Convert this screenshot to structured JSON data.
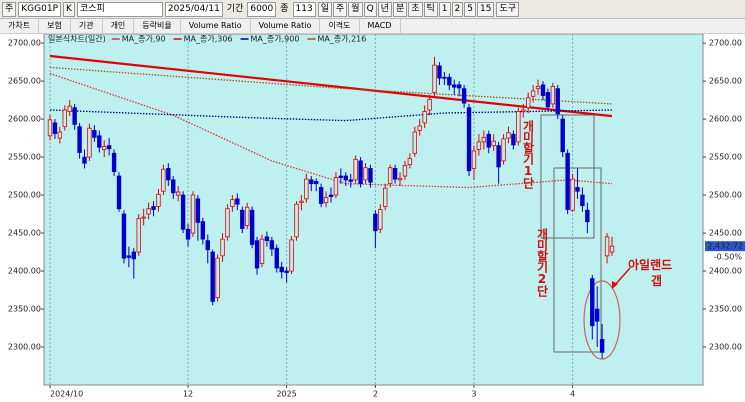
{
  "toolbar": {
    "market": "주",
    "code": "KGG01P",
    "k": "K",
    "name": "코스피",
    "date": "2025/04/11",
    "period_label": "기간",
    "period": "6000",
    "count_label": "종",
    "count": "113",
    "intervals": [
      "일",
      "주",
      "월",
      "Q",
      "년",
      "분",
      "초",
      "틱",
      "1",
      "2",
      "5",
      "15"
    ],
    "tools": "도구"
  },
  "tabs": [
    "가차트",
    "보험",
    "기관",
    "개인",
    "등락비율",
    "Volume Ratio",
    "Volume Ratio",
    "이격도",
    "MACD"
  ],
  "chart_data": {
    "type": "candlestick",
    "legend_title": "일본식차트(일간)",
    "up_color": "#e00000",
    "down_color": "#0000cc",
    "open": [
      2578,
      2595,
      2575,
      2590,
      2610,
      2615,
      2590,
      2550,
      2550,
      2585,
      2578,
      2560,
      2565,
      2555,
      2525,
      2475,
      2420,
      2425,
      2425,
      2470,
      2475,
      2485,
      2485,
      2505,
      2535,
      2520,
      2500,
      2500,
      2455,
      2450,
      2495,
      2465,
      2440,
      2425,
      2365,
      2420,
      2445,
      2485,
      2495,
      2480,
      2460,
      2480,
      2440,
      2410,
      2445,
      2440,
      2430,
      2405,
      2400,
      2400,
      2445,
      2490,
      2495,
      2520,
      2518,
      2510,
      2490,
      2500,
      2500,
      2525,
      2525,
      2520,
      2520,
      2545,
      2520,
      2535,
      2475,
      2455,
      2485,
      2515,
      2535,
      2520,
      2525,
      2540,
      2555,
      2585,
      2595,
      2612,
      2635,
      2670,
      2655,
      2655,
      2645,
      2645,
      2640,
      2615,
      2535,
      2560,
      2570,
      2580,
      2565,
      2565,
      2545,
      2575,
      2580,
      2570,
      2610,
      2615,
      2630,
      2640,
      2645,
      2635,
      2620,
      2640,
      2600,
      2555,
      2480,
      2510,
      2500,
      2480,
      2390,
      2350,
      2310,
      2420,
      2425
    ],
    "high": [
      2606,
      2600,
      2590,
      2618,
      2625,
      2620,
      2595,
      2560,
      2594,
      2592,
      2585,
      2572,
      2575,
      2560,
      2530,
      2480,
      2432,
      2430,
      2475,
      2482,
      2490,
      2492,
      2508,
      2540,
      2542,
      2525,
      2512,
      2505,
      2462,
      2505,
      2500,
      2470,
      2448,
      2428,
      2422,
      2450,
      2488,
      2500,
      2502,
      2485,
      2490,
      2485,
      2445,
      2448,
      2452,
      2445,
      2435,
      2412,
      2405,
      2446,
      2492,
      2500,
      2528,
      2525,
      2522,
      2515,
      2505,
      2510,
      2530,
      2535,
      2530,
      2528,
      2552,
      2550,
      2542,
      2540,
      2480,
      2488,
      2515,
      2540,
      2540,
      2530,
      2545,
      2555,
      2590,
      2600,
      2618,
      2632,
      2682,
      2675,
      2662,
      2660,
      2652,
      2650,
      2645,
      2620,
      2565,
      2580,
      2585,
      2585,
      2580,
      2570,
      2580,
      2590,
      2585,
      2615,
      2620,
      2635,
      2645,
      2652,
      2650,
      2640,
      2648,
      2645,
      2605,
      2560,
      2528,
      2535,
      2510,
      2490,
      2395,
      2380,
      2330,
      2450,
      2445
    ],
    "low": [
      2572,
      2574,
      2568,
      2585,
      2604,
      2586,
      2548,
      2535,
      2545,
      2570,
      2556,
      2550,
      2552,
      2525,
      2478,
      2410,
      2405,
      2390,
      2420,
      2460,
      2468,
      2472,
      2478,
      2500,
      2512,
      2495,
      2492,
      2450,
      2432,
      2445,
      2440,
      2435,
      2410,
      2355,
      2360,
      2412,
      2440,
      2478,
      2480,
      2450,
      2455,
      2430,
      2395,
      2405,
      2432,
      2420,
      2398,
      2390,
      2385,
      2396,
      2440,
      2480,
      2490,
      2505,
      2505,
      2484,
      2484,
      2490,
      2496,
      2515,
      2512,
      2510,
      2515,
      2510,
      2515,
      2510,
      2430,
      2450,
      2480,
      2510,
      2515,
      2512,
      2520,
      2535,
      2550,
      2578,
      2588,
      2605,
      2630,
      2645,
      2645,
      2638,
      2632,
      2630,
      2615,
      2525,
      2520,
      2552,
      2560,
      2555,
      2558,
      2515,
      2540,
      2568,
      2560,
      2565,
      2602,
      2608,
      2622,
      2632,
      2625,
      2610,
      2615,
      2600,
      2550,
      2475,
      2478,
      2495,
      2478,
      2450,
      2310,
      2300,
      2285,
      2410,
      2420
    ],
    "close": [
      2599,
      2581,
      2583,
      2612,
      2617,
      2593,
      2556,
      2542,
      2588,
      2576,
      2563,
      2564,
      2561,
      2531,
      2482,
      2417,
      2418,
      2416,
      2469,
      2471,
      2482,
      2481,
      2501,
      2534,
      2520,
      2503,
      2504,
      2455,
      2442,
      2500,
      2464,
      2442,
      2428,
      2360,
      2417,
      2442,
      2482,
      2494,
      2488,
      2456,
      2484,
      2435,
      2404,
      2442,
      2440,
      2429,
      2404,
      2399,
      2398,
      2441,
      2488,
      2492,
      2521,
      2515,
      2515,
      2489,
      2497,
      2498,
      2523,
      2523,
      2520,
      2518,
      2547,
      2515,
      2536,
      2517,
      2453,
      2481,
      2509,
      2536,
      2521,
      2522,
      2539,
      2548,
      2583,
      2591,
      2610,
      2626,
      2671,
      2654,
      2654,
      2645,
      2642,
      2641,
      2621,
      2532,
      2558,
      2570,
      2576,
      2563,
      2571,
      2537,
      2574,
      2582,
      2566,
      2610,
      2612,
      2628,
      2637,
      2643,
      2631,
      2616,
      2643,
      2607,
      2557,
      2481,
      2521,
      2505,
      2486,
      2465,
      2328,
      2334,
      2293,
      2445,
      2432.72
    ],
    "series": [
      {
        "name": "MA_종가,90",
        "color": "#e03030",
        "style": "dotted",
        "x": [
          0,
          25,
          45,
          60,
          85,
          105,
          114
        ],
        "values": [
          2660,
          2605,
          2545,
          2515,
          2510,
          2520,
          2515
        ]
      },
      {
        "name": "MA_종가,306",
        "color": "#e00000",
        "style": "bold",
        "x": [
          0,
          114
        ],
        "values": [
          2683,
          2604
        ]
      },
      {
        "name": "MA_종가,900",
        "color": "#00007a",
        "style": "dotted",
        "x": [
          0,
          40,
          60,
          80,
          114
        ],
        "values": [
          2612,
          2602,
          2598,
          2608,
          2612
        ]
      },
      {
        "name": "MA_종가,216",
        "color": "#a05020",
        "style": "dotted",
        "x": [
          0,
          60,
          114
        ],
        "values": [
          2668,
          2640,
          2620
        ]
      }
    ],
    "ylim": [
      2250,
      2712
    ],
    "yticks": [
      {
        "value": 2300,
        "label": "2300.00"
      },
      {
        "value": 2350,
        "label": "2350.00"
      },
      {
        "value": 2400,
        "label": "2400.00"
      },
      {
        "value": 2450,
        "label": "2450.00"
      },
      {
        "value": 2500,
        "label": "2500.00"
      },
      {
        "value": 2550,
        "label": "2550.00"
      },
      {
        "value": 2600,
        "label": "2600.00"
      },
      {
        "value": 2650,
        "label": "2650.00"
      },
      {
        "value": 2700,
        "label": "2700.00"
      }
    ],
    "xticks": [
      {
        "value": 0,
        "label": "2024/10"
      },
      {
        "value": 28,
        "label": "12"
      },
      {
        "value": 48,
        "label": "2025"
      },
      {
        "value": 66,
        "label": "2"
      },
      {
        "value": 86,
        "label": "3"
      },
      {
        "value": 106,
        "label": "4"
      }
    ],
    "last_label": "2,432.72",
    "change_label": "-0.50%",
    "annotations": [
      "개미할기1단",
      "개미할기2단",
      "아일랜드",
      "갭"
    ]
  }
}
